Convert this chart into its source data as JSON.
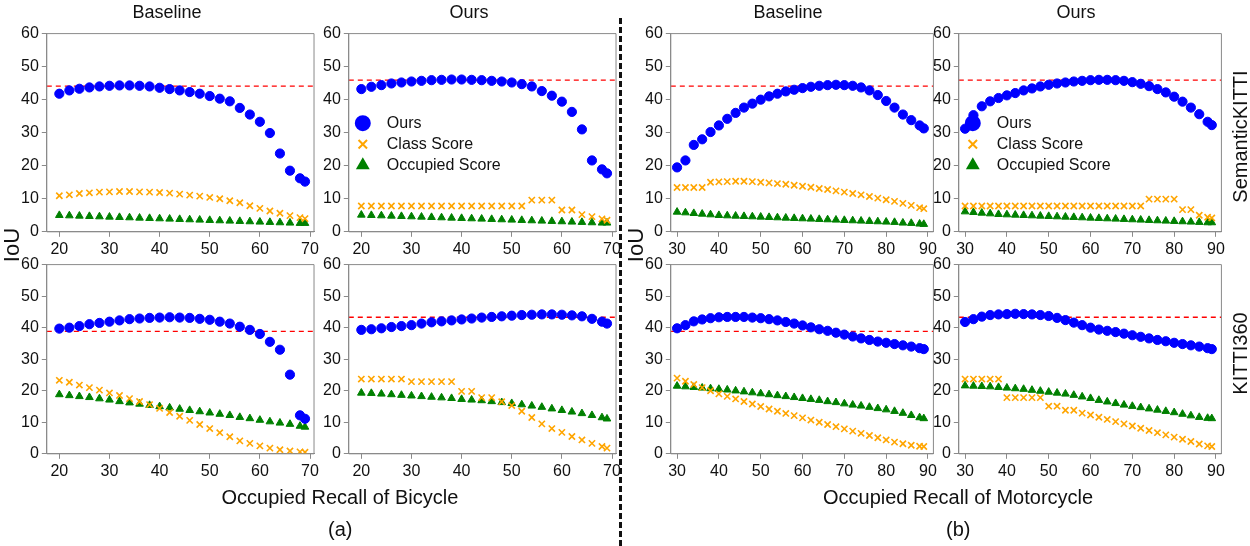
{
  "chart_data": [
    {
      "type": "scatter",
      "title": "Baseline",
      "ylabel": "IoU",
      "x": [
        20,
        22,
        24,
        26,
        28,
        30,
        32,
        34,
        36,
        38,
        40,
        42,
        44,
        46,
        48,
        50,
        52,
        54,
        56,
        58,
        60,
        62,
        64,
        66,
        68,
        69
      ],
      "xlim": [
        17.5,
        70.8
      ],
      "xticks": [
        20,
        30,
        40,
        50,
        60,
        70
      ],
      "ylim": [
        0,
        60
      ],
      "yticks": [
        0,
        10,
        20,
        30,
        40,
        50,
        60
      ],
      "grid": false,
      "series": [
        {
          "color": "#0000ff",
          "marker": "circle",
          "values": [
            41.8,
            42.8,
            43.3,
            43.7,
            44.0,
            44.2,
            44.3,
            44.3,
            44.2,
            44.0,
            43.6,
            43.2,
            42.8,
            42.3,
            41.8,
            41.1,
            40.3,
            39.5,
            37.5,
            35.5,
            33.3,
            29.9,
            23.7,
            18.5,
            16.2,
            15.2
          ]
        },
        {
          "color": "#ffa500",
          "marker": "cross",
          "values": [
            10.9,
            11.2,
            11.6,
            11.8,
            12.0,
            12.1,
            12.2,
            12.2,
            12.1,
            12.0,
            11.9,
            11.7,
            11.4,
            11.1,
            10.8,
            10.4,
            10.0,
            9.4,
            8.8,
            7.9,
            7.1,
            6.3,
            5.6,
            4.9,
            4.3,
            4.0
          ]
        },
        {
          "color": "#008000",
          "marker": "triangle",
          "values": [
            5.0,
            4.9,
            4.8,
            4.7,
            4.6,
            4.5,
            4.4,
            4.3,
            4.2,
            4.1,
            4.0,
            3.9,
            3.8,
            3.7,
            3.6,
            3.5,
            3.4,
            3.3,
            3.2,
            3.1,
            3.0,
            2.9,
            2.8,
            2.7,
            2.6,
            2.6
          ]
        }
      ],
      "ref_lines": [
        {
          "axis": "y",
          "value": 44.1,
          "color": "#ff0000",
          "line_style": "dashed"
        }
      ]
    },
    {
      "type": "scatter",
      "title": "Ours",
      "x": [
        20,
        22,
        24,
        26,
        28,
        30,
        32,
        34,
        36,
        38,
        40,
        42,
        44,
        46,
        48,
        50,
        52,
        54,
        56,
        58,
        60,
        62,
        64,
        66,
        68,
        69
      ],
      "xlim": [
        17.5,
        70.8
      ],
      "xticks": [
        20,
        30,
        40,
        50,
        60,
        70
      ],
      "ylim": [
        0,
        60
      ],
      "yticks": [
        0,
        10,
        20,
        30,
        40,
        50,
        60
      ],
      "grid": false,
      "legend": "center left",
      "series": [
        {
          "name": "Ours",
          "color": "#0000ff",
          "marker": "circle",
          "values": [
            43.2,
            43.9,
            44.4,
            44.9,
            45.2,
            45.5,
            45.7,
            45.9,
            46.0,
            46.1,
            46.1,
            46.0,
            45.9,
            45.7,
            45.5,
            45.2,
            44.7,
            44.0,
            42.6,
            41.2,
            39.4,
            36.3,
            31.0,
            21.6,
            18.9,
            17.7
          ]
        },
        {
          "name": "Class Score",
          "color": "#ffa500",
          "marker": "cross",
          "values": [
            7.8,
            7.8,
            7.8,
            7.8,
            7.8,
            7.8,
            7.8,
            7.8,
            7.8,
            7.8,
            7.8,
            7.8,
            7.8,
            7.8,
            7.8,
            7.8,
            7.8,
            9.6,
            9.6,
            9.6,
            6.6,
            6.6,
            5.2,
            4.6,
            3.9,
            3.5
          ]
        },
        {
          "name": "Occupied Score",
          "color": "#008000",
          "marker": "triangle",
          "values": [
            5.1,
            5.0,
            4.9,
            4.8,
            4.7,
            4.6,
            4.5,
            4.4,
            4.3,
            4.2,
            4.1,
            4.0,
            3.9,
            3.8,
            3.7,
            3.6,
            3.5,
            3.4,
            3.3,
            3.2,
            3.1,
            3.0,
            2.9,
            2.8,
            2.7,
            2.7
          ]
        }
      ],
      "ref_lines": [
        {
          "axis": "y",
          "value": 45.9,
          "color": "#ff0000",
          "line_style": "dashed"
        }
      ]
    },
    {
      "type": "scatter",
      "title": "Baseline",
      "ylabel": "IoU",
      "x": [
        30,
        32,
        34,
        36,
        38,
        40,
        42,
        44,
        46,
        48,
        50,
        52,
        54,
        56,
        58,
        60,
        62,
        64,
        66,
        68,
        70,
        72,
        74,
        76,
        78,
        80,
        82,
        84,
        86,
        88,
        89
      ],
      "xlim": [
        28.5,
        91.3
      ],
      "xticks": [
        30,
        40,
        50,
        60,
        70,
        80,
        90
      ],
      "ylim": [
        0,
        60
      ],
      "yticks": [
        0,
        10,
        20,
        30,
        40,
        50,
        60
      ],
      "grid": false,
      "series": [
        {
          "color": "#0000ff",
          "marker": "circle",
          "values": [
            19.5,
            21.6,
            26.3,
            28.0,
            30.2,
            32.2,
            34.2,
            36.0,
            37.6,
            38.8,
            40.0,
            41.0,
            41.8,
            42.5,
            43.0,
            43.5,
            43.9,
            44.2,
            44.4,
            44.5,
            44.4,
            44.2,
            43.7,
            42.8,
            41.4,
            39.6,
            37.6,
            35.5,
            33.8,
            32.2,
            31.3
          ]
        },
        {
          "color": "#ffa500",
          "marker": "cross",
          "values": [
            13.4,
            13.4,
            13.4,
            13.4,
            15.0,
            15.1,
            15.2,
            15.3,
            15.3,
            15.2,
            15.0,
            14.8,
            14.6,
            14.4,
            14.1,
            13.8,
            13.5,
            13.1,
            12.8,
            12.4,
            12.0,
            11.6,
            11.2,
            10.7,
            10.2,
            9.7,
            9.2,
            8.6,
            8.0,
            7.3,
            7.0
          ]
        },
        {
          "color": "#008000",
          "marker": "triangle",
          "values": [
            6.0,
            5.8,
            5.6,
            5.4,
            5.2,
            5.0,
            4.9,
            4.8,
            4.7,
            4.6,
            4.5,
            4.4,
            4.3,
            4.2,
            4.1,
            4.0,
            3.9,
            3.8,
            3.7,
            3.6,
            3.5,
            3.4,
            3.3,
            3.2,
            3.1,
            3.0,
            2.9,
            2.7,
            2.6,
            2.4,
            2.3
          ]
        }
      ],
      "ref_lines": [
        {
          "axis": "y",
          "value": 44.1,
          "color": "#ff0000",
          "line_style": "dashed"
        }
      ]
    },
    {
      "type": "scatter",
      "title": "Ours",
      "x": [
        30,
        32,
        34,
        36,
        38,
        40,
        42,
        44,
        46,
        48,
        50,
        52,
        54,
        56,
        58,
        60,
        62,
        64,
        66,
        68,
        70,
        72,
        74,
        76,
        78,
        80,
        82,
        84,
        86,
        88,
        89
      ],
      "xlim": [
        28.5,
        91.3
      ],
      "xticks": [
        30,
        40,
        50,
        60,
        70,
        80,
        90
      ],
      "ylim": [
        0,
        60
      ],
      "yticks": [
        0,
        10,
        20,
        30,
        40,
        50,
        60
      ],
      "grid": false,
      "legend": "center left",
      "series": [
        {
          "name": "Ours",
          "color": "#0000ff",
          "marker": "circle",
          "values": [
            31.2,
            35.3,
            38.0,
            39.5,
            40.5,
            41.3,
            42.0,
            42.8,
            43.4,
            44.0,
            44.5,
            44.9,
            45.2,
            45.5,
            45.7,
            45.9,
            46.0,
            46.0,
            45.9,
            45.7,
            45.3,
            44.8,
            44.1,
            43.2,
            42.2,
            40.9,
            39.4,
            37.6,
            35.6,
            33.3,
            32.3
          ]
        },
        {
          "name": "Class Score",
          "color": "#ffa500",
          "marker": "cross",
          "values": [
            7.8,
            7.8,
            7.8,
            7.8,
            7.8,
            7.8,
            7.8,
            7.8,
            7.8,
            7.8,
            7.8,
            7.8,
            7.8,
            7.8,
            7.8,
            7.8,
            7.8,
            7.8,
            7.8,
            7.8,
            7.8,
            7.8,
            9.9,
            9.9,
            9.9,
            9.9,
            6.7,
            6.7,
            5.0,
            4.4,
            4.2
          ]
        },
        {
          "name": "Occupied Score",
          "color": "#008000",
          "marker": "triangle",
          "values": [
            6.1,
            5.9,
            5.7,
            5.5,
            5.3,
            5.2,
            5.1,
            5.0,
            4.9,
            4.8,
            4.7,
            4.6,
            4.5,
            4.4,
            4.3,
            4.2,
            4.1,
            4.0,
            3.9,
            3.8,
            3.7,
            3.6,
            3.5,
            3.4,
            3.3,
            3.2,
            3.1,
            3.0,
            2.9,
            2.8,
            2.8
          ]
        }
      ],
      "ref_lines": [
        {
          "axis": "y",
          "value": 45.9,
          "color": "#ff0000",
          "line_style": "dashed"
        }
      ],
      "annotations": [
        "SemanticKITTI"
      ]
    },
    {
      "type": "scatter",
      "xlabel": "Occupied Recall of Bicycle",
      "x": [
        20,
        22,
        24,
        26,
        28,
        30,
        32,
        34,
        36,
        38,
        40,
        42,
        44,
        46,
        48,
        50,
        52,
        54,
        56,
        58,
        60,
        62,
        64,
        66,
        68,
        69
      ],
      "xlim": [
        17.5,
        70.8
      ],
      "xticks": [
        20,
        30,
        40,
        50,
        60,
        70
      ],
      "ylim": [
        0,
        60
      ],
      "yticks": [
        0,
        10,
        20,
        30,
        40,
        50,
        60
      ],
      "grid": false,
      "series": [
        {
          "color": "#0000ff",
          "marker": "circle",
          "values": [
            39.7,
            40.0,
            40.5,
            41.1,
            41.5,
            41.9,
            42.3,
            42.7,
            42.9,
            43.1,
            43.2,
            43.3,
            43.2,
            43.1,
            42.8,
            42.5,
            41.9,
            41.3,
            40.3,
            39.3,
            38.0,
            35.5,
            33.0,
            25.1,
            12.2,
            11.1
          ]
        },
        {
          "color": "#ffa500",
          "marker": "cross",
          "values": [
            23.3,
            22.7,
            21.8,
            21.0,
            20.2,
            19.3,
            18.5,
            17.5,
            16.6,
            15.6,
            14.4,
            13.1,
            11.9,
            10.6,
            9.3,
            8.0,
            6.7,
            5.4,
            4.1,
            3.3,
            2.5,
            1.8,
            1.3,
            0.9,
            0.6,
            0.5
          ]
        },
        {
          "color": "#008000",
          "marker": "triangle",
          "values": [
            18.8,
            18.5,
            18.2,
            17.9,
            17.5,
            17.1,
            16.6,
            16.2,
            15.8,
            15.4,
            15.0,
            14.6,
            14.2,
            13.8,
            13.4,
            13.0,
            12.6,
            12.2,
            11.6,
            11.2,
            10.7,
            10.2,
            9.8,
            9.4,
            8.8,
            8.5
          ]
        }
      ],
      "ref_lines": [
        {
          "axis": "y",
          "value": 38.8,
          "color": "#ff0000",
          "line_style": "dashed"
        }
      ],
      "annotations": [
        "(a)"
      ]
    },
    {
      "type": "scatter",
      "x": [
        20,
        22,
        24,
        26,
        28,
        30,
        32,
        34,
        36,
        38,
        40,
        42,
        44,
        46,
        48,
        50,
        52,
        54,
        56,
        58,
        60,
        62,
        64,
        66,
        68,
        69
      ],
      "xlim": [
        17.5,
        70.8
      ],
      "xticks": [
        20,
        30,
        40,
        50,
        60,
        70
      ],
      "ylim": [
        0,
        60
      ],
      "yticks": [
        0,
        10,
        20,
        30,
        40,
        50,
        60
      ],
      "grid": false,
      "series": [
        {
          "color": "#0000ff",
          "marker": "circle",
          "values": [
            39.3,
            39.5,
            39.8,
            40.2,
            40.5,
            40.8,
            41.3,
            41.7,
            42.0,
            42.3,
            42.6,
            42.9,
            43.2,
            43.4,
            43.6,
            43.8,
            44.0,
            44.1,
            44.2,
            44.2,
            44.1,
            43.9,
            43.6,
            42.8,
            41.9,
            41.3
          ]
        },
        {
          "color": "#ffa500",
          "marker": "cross",
          "values": [
            23.7,
            23.7,
            23.7,
            23.7,
            23.7,
            22.9,
            22.9,
            22.9,
            22.9,
            22.9,
            19.8,
            19.8,
            17.8,
            17.8,
            16.5,
            15.3,
            13.5,
            11.5,
            9.5,
            8.0,
            6.8,
            5.5,
            4.4,
            3.3,
            2.3,
            1.8
          ]
        },
        {
          "color": "#008000",
          "marker": "triangle",
          "values": [
            19.3,
            19.2,
            19.0,
            18.8,
            18.6,
            18.4,
            18.2,
            18.0,
            17.8,
            17.6,
            17.3,
            17.1,
            16.9,
            16.6,
            16.3,
            16.0,
            15.6,
            15.2,
            14.8,
            14.3,
            13.8,
            13.3,
            12.8,
            12.2,
            11.5,
            11.1
          ]
        }
      ],
      "ref_lines": [
        {
          "axis": "y",
          "value": 43.3,
          "color": "#ff0000",
          "line_style": "dashed"
        }
      ]
    },
    {
      "type": "scatter",
      "xlabel": "Occupied Recall of Motorcycle",
      "x": [
        30,
        32,
        34,
        36,
        38,
        40,
        42,
        44,
        46,
        48,
        50,
        52,
        54,
        56,
        58,
        60,
        62,
        64,
        66,
        68,
        70,
        72,
        74,
        76,
        78,
        80,
        82,
        84,
        86,
        88,
        89
      ],
      "xlim": [
        28.5,
        91.3
      ],
      "xticks": [
        30,
        40,
        50,
        60,
        70,
        80,
        90
      ],
      "ylim": [
        0,
        60
      ],
      "yticks": [
        0,
        10,
        20,
        30,
        40,
        50,
        60
      ],
      "grid": false,
      "series": [
        {
          "color": "#0000ff",
          "marker": "circle",
          "values": [
            39.8,
            40.8,
            42.0,
            42.6,
            43.0,
            43.3,
            43.4,
            43.4,
            43.4,
            43.2,
            43.0,
            42.7,
            42.3,
            41.8,
            41.3,
            40.7,
            40.1,
            39.5,
            39.0,
            38.4,
            37.8,
            37.2,
            36.6,
            36.1,
            35.6,
            35.2,
            34.8,
            34.4,
            34.0,
            33.5,
            33.2
          ]
        },
        {
          "color": "#ffa500",
          "marker": "cross",
          "values": [
            24.0,
            23.0,
            22.0,
            21.0,
            20.0,
            19.0,
            18.2,
            17.4,
            16.6,
            15.8,
            15.0,
            14.2,
            13.5,
            12.8,
            12.1,
            11.4,
            10.7,
            10.0,
            9.3,
            8.6,
            7.9,
            7.2,
            6.5,
            5.8,
            5.1,
            4.4,
            3.7,
            3.2,
            2.7,
            2.4,
            2.3
          ]
        },
        {
          "color": "#008000",
          "marker": "triangle",
          "values": [
            21.5,
            21.3,
            21.1,
            20.9,
            20.7,
            20.5,
            20.3,
            20.0,
            19.7,
            19.4,
            19.1,
            18.8,
            18.5,
            18.2,
            17.9,
            17.6,
            17.3,
            17.0,
            16.6,
            16.3,
            15.9,
            15.5,
            15.2,
            14.8,
            14.4,
            14.0,
            13.5,
            12.9,
            12.2,
            11.5,
            11.2
          ]
        }
      ],
      "ref_lines": [
        {
          "axis": "y",
          "value": 38.8,
          "color": "#ff0000",
          "line_style": "dashed"
        }
      ],
      "annotations": [
        "(b)"
      ]
    },
    {
      "type": "scatter",
      "x": [
        30,
        32,
        34,
        36,
        38,
        40,
        42,
        44,
        46,
        48,
        50,
        52,
        54,
        56,
        58,
        60,
        62,
        64,
        66,
        68,
        70,
        72,
        74,
        76,
        78,
        80,
        82,
        84,
        86,
        88,
        89
      ],
      "xlim": [
        28.5,
        91.3
      ],
      "xticks": [
        30,
        40,
        50,
        60,
        70,
        80,
        90
      ],
      "ylim": [
        0,
        60
      ],
      "yticks": [
        0,
        10,
        20,
        30,
        40,
        50,
        60
      ],
      "grid": false,
      "series": [
        {
          "color": "#0000ff",
          "marker": "circle",
          "values": [
            41.8,
            42.7,
            43.5,
            44.0,
            44.2,
            44.3,
            44.4,
            44.3,
            44.2,
            44.0,
            43.7,
            43.1,
            42.4,
            41.6,
            40.8,
            40.0,
            39.4,
            39.0,
            38.6,
            38.1,
            37.6,
            37.1,
            36.6,
            36.1,
            35.7,
            35.2,
            34.8,
            34.4,
            34.0,
            33.5,
            33.2
          ]
        },
        {
          "color": "#ffa500",
          "marker": "cross",
          "values": [
            23.7,
            23.7,
            23.7,
            23.7,
            23.7,
            17.8,
            17.8,
            17.8,
            17.8,
            17.8,
            15.1,
            15.1,
            13.8,
            13.8,
            12.9,
            12.3,
            11.6,
            10.9,
            10.2,
            9.5,
            8.8,
            8.1,
            7.4,
            6.7,
            6.0,
            5.3,
            4.6,
            3.9,
            3.1,
            2.5,
            2.3
          ]
        },
        {
          "color": "#008000",
          "marker": "triangle",
          "values": [
            21.6,
            21.5,
            21.4,
            21.3,
            21.1,
            20.9,
            20.7,
            20.5,
            20.2,
            19.9,
            19.6,
            19.3,
            19.0,
            18.6,
            18.1,
            17.6,
            17.0,
            16.5,
            16.0,
            15.5,
            15.1,
            14.7,
            14.3,
            13.9,
            13.5,
            13.1,
            12.6,
            12.1,
            11.6,
            11.3,
            11.2
          ]
        }
      ],
      "ref_lines": [
        {
          "axis": "y",
          "value": 43.3,
          "color": "#ff0000",
          "line_style": "dashed"
        }
      ],
      "annotations": [
        "KITTI360"
      ]
    }
  ]
}
